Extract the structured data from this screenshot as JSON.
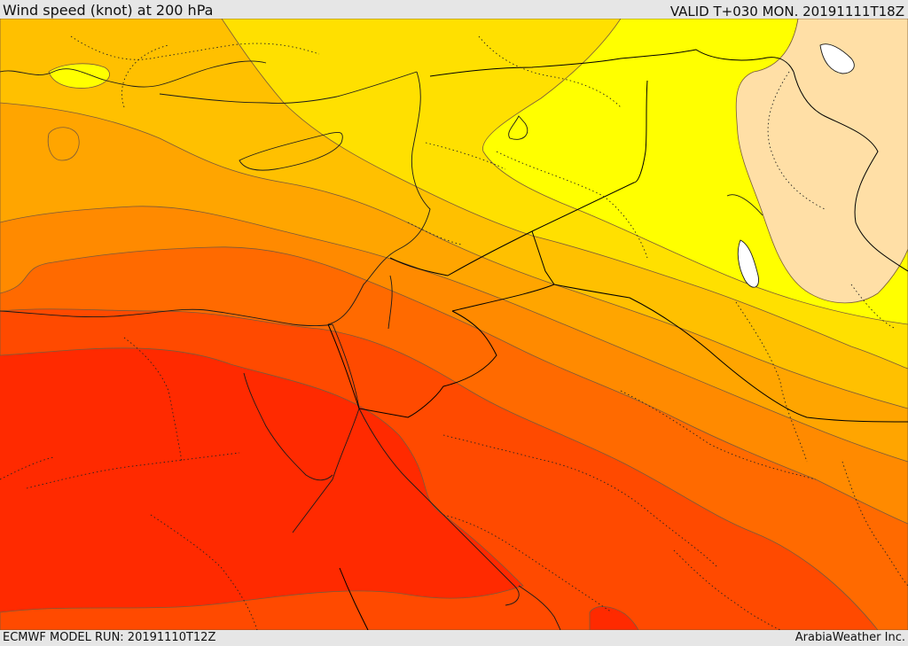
{
  "header": {
    "title": "Wind speed (knot) at 200 hPa",
    "valid": "VALID T+030 MON. 20191111T18Z"
  },
  "footer": {
    "model_run": "ECMWF MODEL RUN: 20191110T12Z",
    "brand": "ArabiaWeather Inc."
  },
  "map": {
    "field": "wind-speed-200hPa",
    "color_bands": [
      "#ffdfa6",
      "#ffff00",
      "#ffe000",
      "#ffc000",
      "#ffa500",
      "#ff8a00",
      "#ff6a00",
      "#ff4a00",
      "#ff2a00"
    ],
    "contour_color": "#7a5a3a",
    "border_color": "#000000"
  }
}
